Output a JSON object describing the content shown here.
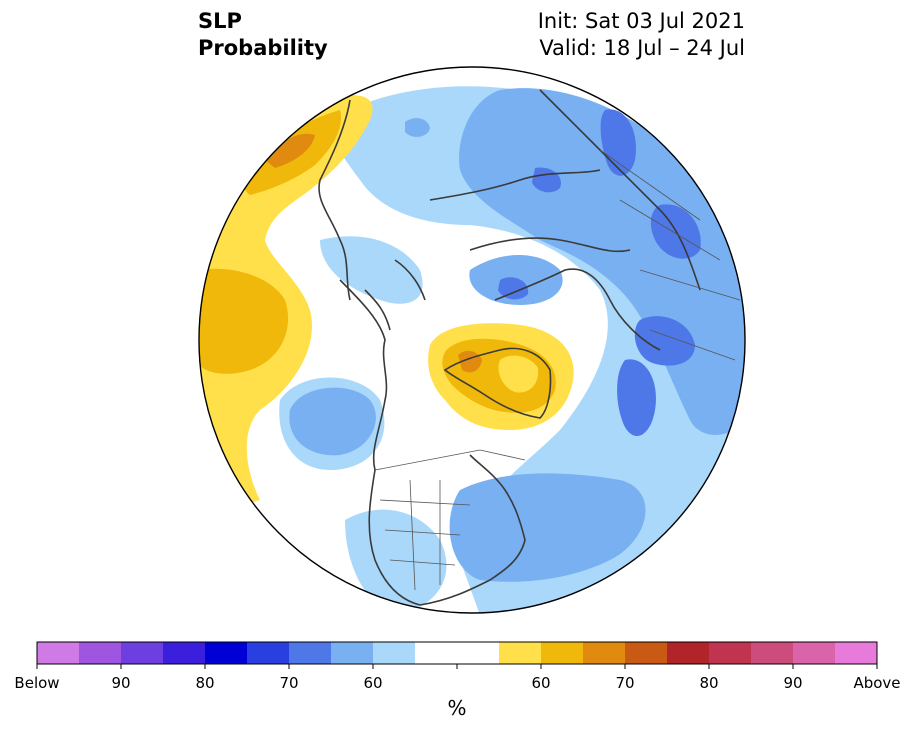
{
  "header": {
    "variable": "SLP",
    "product": "Probability",
    "init": "Init: Sat 03 Jul 2021",
    "valid": "Valid: 18 Jul – 24 Jul"
  },
  "colorbar": {
    "unit": "%",
    "below_colors": [
      "#d07ae6",
      "#a055e0",
      "#6e3fe0",
      "#3c1fdc",
      "#0000d6",
      "#2a3fe0",
      "#4e78e8",
      "#78b0f2",
      "#aad8fa"
    ],
    "neutral_color": "#ffffff",
    "above_colors": [
      "#ffe04a",
      "#f0b80a",
      "#e08a10",
      "#c85a14",
      "#b0242a",
      "#c03450",
      "#cc4c7c",
      "#da64aa",
      "#e87adc"
    ],
    "tick_labels": [
      "Below",
      "90",
      "80",
      "70",
      "60",
      "60",
      "70",
      "80",
      "90",
      "Above"
    ]
  }
}
